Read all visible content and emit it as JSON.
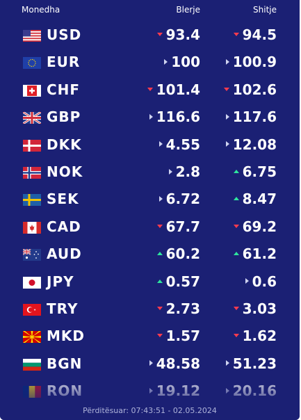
{
  "header": {
    "col_currency": "Monedha",
    "col_buy": "Blerje",
    "col_sell": "Shitje"
  },
  "rates": [
    {
      "code": "USD",
      "flag": "flag-us",
      "buy": "93.4",
      "buy_trend": "down",
      "sell": "94.5",
      "sell_trend": "down"
    },
    {
      "code": "EUR",
      "flag": "flag-eu",
      "buy": "100",
      "buy_trend": "neutral",
      "sell": "100.9",
      "sell_trend": "neutral"
    },
    {
      "code": "CHF",
      "flag": "flag-ch",
      "buy": "101.4",
      "buy_trend": "down",
      "sell": "102.6",
      "sell_trend": "down"
    },
    {
      "code": "GBP",
      "flag": "flag-gb",
      "buy": "116.6",
      "buy_trend": "neutral",
      "sell": "117.6",
      "sell_trend": "neutral"
    },
    {
      "code": "DKK",
      "flag": "flag-dk",
      "buy": "4.55",
      "buy_trend": "neutral",
      "sell": "12.08",
      "sell_trend": "neutral"
    },
    {
      "code": "NOK",
      "flag": "flag-no",
      "buy": "2.8",
      "buy_trend": "neutral",
      "sell": "6.75",
      "sell_trend": "up"
    },
    {
      "code": "SEK",
      "flag": "flag-se",
      "buy": "6.72",
      "buy_trend": "neutral",
      "sell": "8.47",
      "sell_trend": "up"
    },
    {
      "code": "CAD",
      "flag": "flag-ca",
      "buy": "67.7",
      "buy_trend": "down",
      "sell": "69.2",
      "sell_trend": "down"
    },
    {
      "code": "AUD",
      "flag": "flag-au",
      "buy": "60.2",
      "buy_trend": "up",
      "sell": "61.2",
      "sell_trend": "up"
    },
    {
      "code": "JPY",
      "flag": "flag-jp",
      "buy": "0.57",
      "buy_trend": "up",
      "sell": "0.6",
      "sell_trend": "neutral"
    },
    {
      "code": "TRY",
      "flag": "flag-tr",
      "buy": "2.73",
      "buy_trend": "down",
      "sell": "3.03",
      "sell_trend": "down"
    },
    {
      "code": "MKD",
      "flag": "flag-mk",
      "buy": "1.57",
      "buy_trend": "down",
      "sell": "1.62",
      "sell_trend": "down"
    },
    {
      "code": "BGN",
      "flag": "flag-bg",
      "buy": "48.58",
      "buy_trend": "neutral",
      "sell": "51.23",
      "sell_trend": "neutral"
    },
    {
      "code": "RON",
      "flag": "flag-ro",
      "buy": "19.12",
      "buy_trend": "neutral",
      "sell": "20.16",
      "sell_trend": "neutral"
    }
  ],
  "footer": {
    "updated": "Përditësuar: 07:43:51 - 02.05.2024"
  },
  "colors": {
    "background": "#1b2074",
    "down": "#ff3b4e",
    "up": "#2ee59d",
    "neutral": "#cfd3f0"
  }
}
